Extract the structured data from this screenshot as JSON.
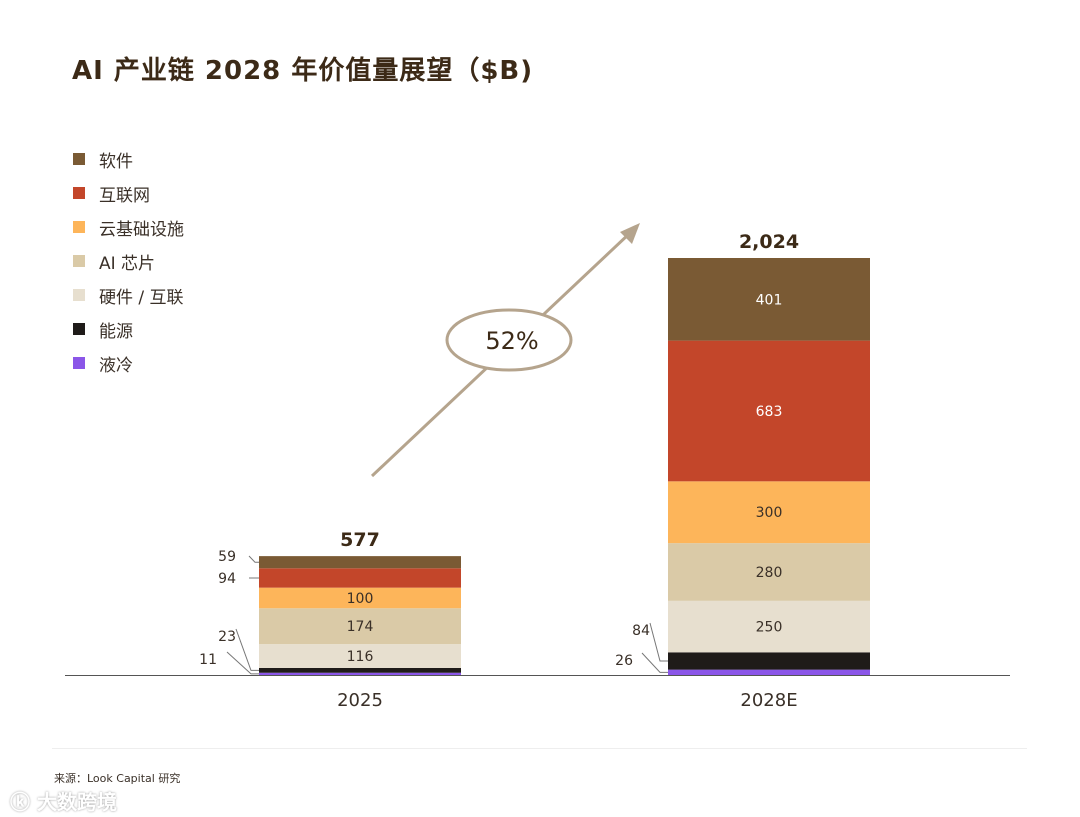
{
  "title": "AI 产业链 2028 年价值量展望（$B)",
  "source": "来源：Look Capital 研究",
  "watermark": "大数跨境",
  "chart_data": {
    "type": "bar",
    "stacked": true,
    "title": "AI 产业链 2028 年价值量展望（$B)",
    "categories": [
      "2025",
      "2028E"
    ],
    "totals": [
      "577",
      "2,024"
    ],
    "series": [
      {
        "name": "软件",
        "color": "#7a5a34",
        "values": [
          59,
          401
        ]
      },
      {
        "name": "互联网",
        "color": "#c3462a",
        "values": [
          94,
          683
        ]
      },
      {
        "name": "云基础设施",
        "color": "#fdb55a",
        "values": [
          100,
          300
        ]
      },
      {
        "name": "AI 芯片",
        "color": "#dacaa7",
        "values": [
          174,
          280
        ]
      },
      {
        "name": "硬件 / 互联",
        "color": "#e7dfcf",
        "values": [
          116,
          250
        ]
      },
      {
        "name": "能源",
        "color": "#1f1b19",
        "values": [
          23,
          84
        ]
      },
      {
        "name": "液冷",
        "color": "#8b56e8",
        "values": [
          11,
          26
        ]
      }
    ],
    "growth_annotation": "52%",
    "legend_position": "top-left",
    "grid": false
  }
}
